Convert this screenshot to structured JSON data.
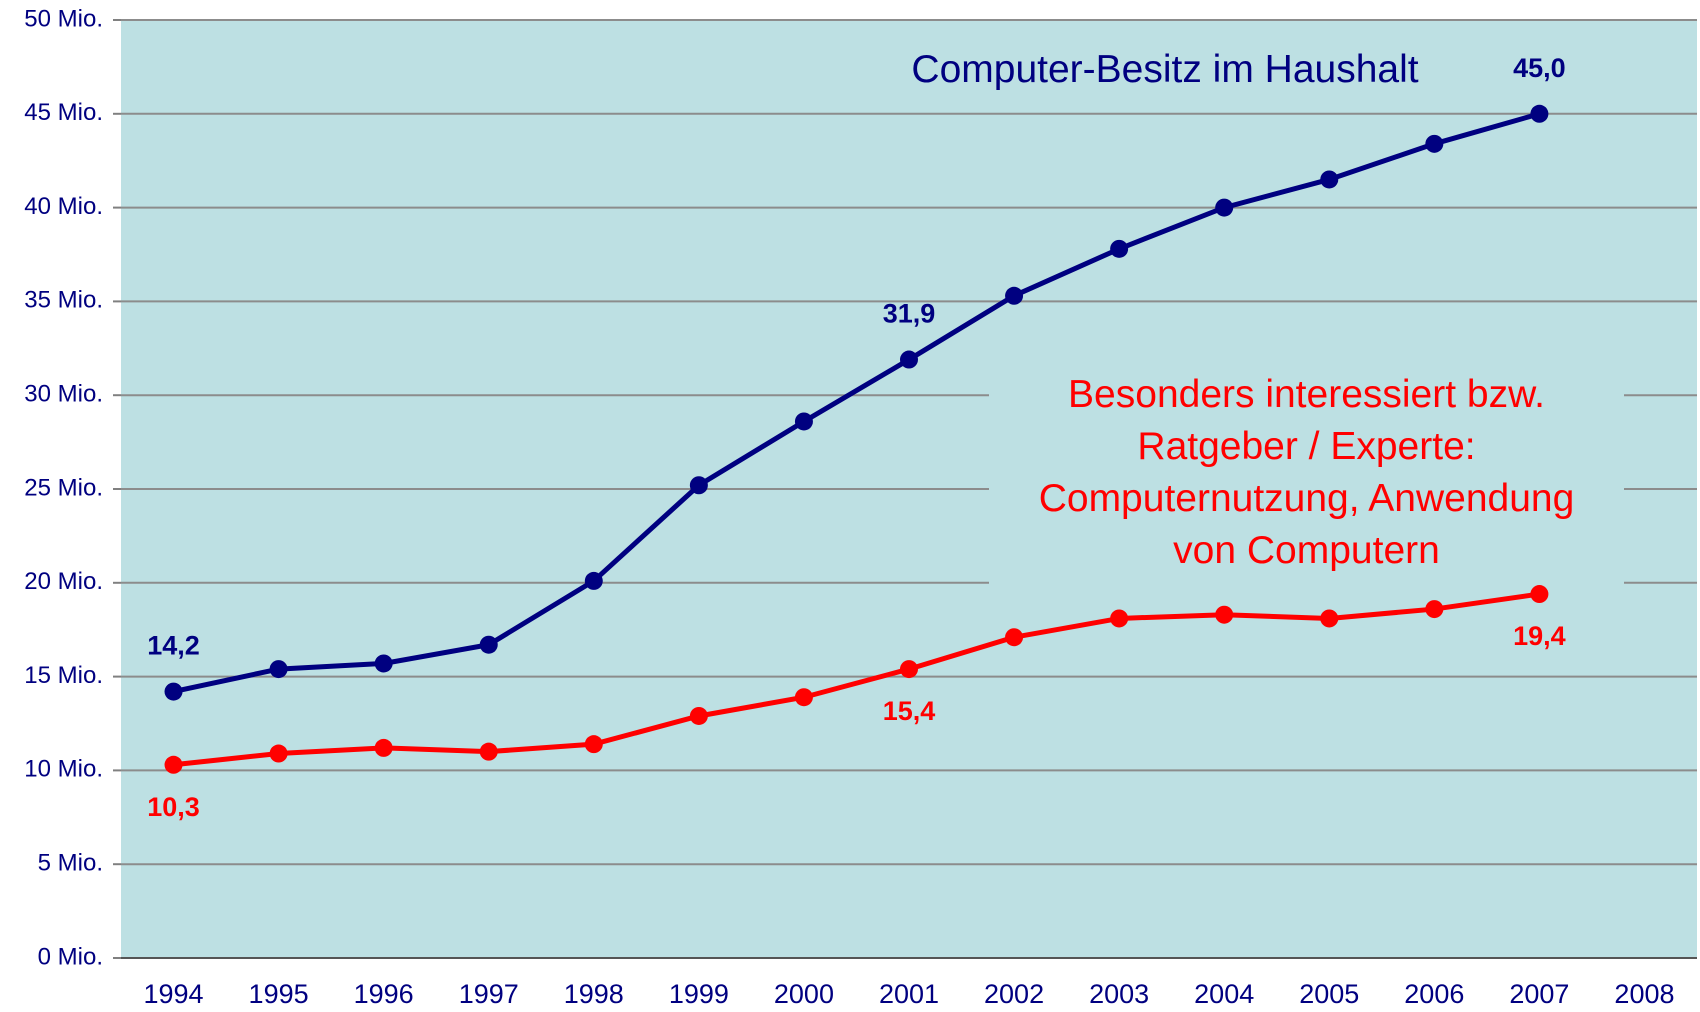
{
  "chart_data": {
    "type": "line",
    "categories": [
      "1994",
      "1995",
      "1996",
      "1997",
      "1998",
      "1999",
      "2000",
      "2001",
      "2002",
      "2003",
      "2004",
      "2005",
      "2006",
      "2007",
      "2008"
    ],
    "series": [
      {
        "name": "Computer-Besitz im Haushalt",
        "color": "#000080",
        "values": [
          14.2,
          15.4,
          15.7,
          16.7,
          20.1,
          25.2,
          28.6,
          31.9,
          35.3,
          37.8,
          40.0,
          41.5,
          43.4,
          45.0,
          null
        ],
        "value_labels": [
          "14,2",
          null,
          null,
          null,
          null,
          null,
          null,
          "31,9",
          null,
          null,
          null,
          null,
          null,
          "45,0",
          null
        ]
      },
      {
        "name": "Besonders interessiert bzw.\nRatgeber / Experte:\nComputernutzung, Anwendung\nvon Computern",
        "color": "#ff0000",
        "values": [
          10.3,
          10.9,
          11.2,
          11.0,
          11.4,
          12.9,
          13.9,
          15.4,
          17.1,
          18.1,
          18.3,
          18.1,
          18.6,
          19.4,
          null
        ],
        "value_labels": [
          "10,3",
          null,
          null,
          null,
          null,
          null,
          null,
          "15,4",
          null,
          null,
          null,
          null,
          null,
          "19,4",
          null
        ]
      }
    ],
    "ylim": [
      0,
      50
    ],
    "yticks": [
      {
        "value": 0,
        "label": "0 Mio."
      },
      {
        "value": 5,
        "label": "5 Mio."
      },
      {
        "value": 10,
        "label": "10 Mio."
      },
      {
        "value": 15,
        "label": "15 Mio."
      },
      {
        "value": 20,
        "label": "20 Mio."
      },
      {
        "value": 25,
        "label": "25 Mio."
      },
      {
        "value": 30,
        "label": "30 Mio."
      },
      {
        "value": 35,
        "label": "35 Mio."
      },
      {
        "value": 40,
        "label": "40 Mio."
      },
      {
        "value": 45,
        "label": "45 Mio."
      },
      {
        "value": 50,
        "label": "50 Mio."
      }
    ],
    "grid": true,
    "background": "#bde0e3"
  }
}
